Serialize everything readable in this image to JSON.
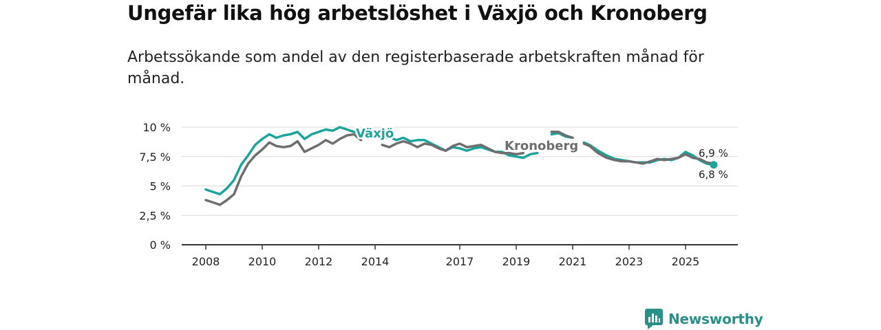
{
  "header": {
    "title": "Ungefär lika hög arbetslöshet i Växjö och Kronoberg",
    "subtitle": "Arbetssökande som andel av den registerbaserade arbetskraften månad för månad."
  },
  "brand": {
    "name": "Newsworthy",
    "icon": "newsworthy-logo-icon",
    "color": "#2a8f89"
  },
  "colors": {
    "vaxjo": "#1ba39c",
    "kronoberg": "#6e6e6e",
    "grid": "#d9d9d9",
    "axis": "#333333"
  },
  "chart_data": {
    "type": "line",
    "title": "Ungefär lika hög arbetslöshet i Växjö och Kronoberg",
    "xlabel": "",
    "ylabel": "",
    "xlim": [
      2008,
      2026.75
    ],
    "ylim": [
      0,
      10
    ],
    "y_ticks": [
      {
        "value": 0,
        "label": "0 %"
      },
      {
        "value": 2.5,
        "label": "2,5 %"
      },
      {
        "value": 5,
        "label": "5 %"
      },
      {
        "value": 7.5,
        "label": "7,5 %"
      },
      {
        "value": 10,
        "label": "10 %"
      }
    ],
    "x_ticks": [
      {
        "value": 2008,
        "label": "2008"
      },
      {
        "value": 2010,
        "label": "2010"
      },
      {
        "value": 2012,
        "label": "2012"
      },
      {
        "value": 2014,
        "label": "2014"
      },
      {
        "value": 2017,
        "label": "2017"
      },
      {
        "value": 2019,
        "label": "2019"
      },
      {
        "value": 2021,
        "label": "2021"
      },
      {
        "value": 2023,
        "label": "2023"
      },
      {
        "value": 2025,
        "label": "2025"
      }
    ],
    "grid": true,
    "series": [
      {
        "name": "Växjö",
        "label": "Växjö",
        "color": "#1ba39c",
        "end_label": "6,8 %",
        "x": [
          2008.0,
          2008.25,
          2008.5,
          2008.75,
          2009.0,
          2009.25,
          2009.5,
          2009.75,
          2010.0,
          2010.25,
          2010.5,
          2010.75,
          2011.0,
          2011.25,
          2011.5,
          2011.75,
          2012.0,
          2012.25,
          2012.5,
          2012.75,
          2013.0,
          2013.25,
          2013.5,
          null,
          2014.25,
          2014.5,
          2014.75,
          2015.0,
          2015.25,
          2015.5,
          2015.75,
          2016.0,
          2016.25,
          2016.5,
          2016.75,
          2017.0,
          2017.25,
          2017.5,
          2017.75,
          2018.0,
          2018.25,
          2018.5,
          2018.75,
          2019.0,
          2019.25,
          2019.5,
          2019.75,
          null,
          2020.25,
          2020.5,
          2020.75,
          2021.0,
          null,
          2021.4,
          2021.6,
          2021.9,
          2022.2,
          2022.5,
          2022.75,
          2023.0,
          2023.25,
          2023.5,
          2023.75,
          2024.0,
          2024.25,
          2024.5,
          2024.75,
          2025.0,
          2025.25,
          2025.5,
          2025.75,
          2026.0
        ],
        "y": [
          4.7,
          4.5,
          4.3,
          4.8,
          5.5,
          6.8,
          7.6,
          8.5,
          9.0,
          9.4,
          9.1,
          9.3,
          9.4,
          9.6,
          9.0,
          9.4,
          9.6,
          9.8,
          9.7,
          10.0,
          9.8,
          9.6,
          9.5,
          null,
          9.0,
          9.2,
          8.9,
          9.1,
          8.8,
          8.9,
          8.9,
          8.6,
          8.3,
          8.0,
          8.3,
          8.2,
          8.0,
          8.2,
          8.3,
          8.1,
          7.9,
          7.9,
          7.6,
          7.5,
          7.4,
          7.7,
          7.8,
          null,
          9.4,
          9.5,
          9.2,
          9.1,
          null,
          8.7,
          8.5,
          8.0,
          7.6,
          7.3,
          7.2,
          7.1,
          7.0,
          7.0,
          7.0,
          7.2,
          7.3,
          7.2,
          7.4,
          7.9,
          7.6,
          7.2,
          6.9,
          6.8
        ]
      },
      {
        "name": "Kronoberg",
        "label": "Kronoberg",
        "color": "#6e6e6e",
        "end_label": "6,9 %",
        "x": [
          2008.0,
          2008.25,
          2008.5,
          2008.75,
          2009.0,
          2009.25,
          2009.5,
          2009.75,
          2010.0,
          2010.25,
          2010.5,
          2010.75,
          2011.0,
          2011.25,
          2011.5,
          2011.75,
          2012.0,
          2012.25,
          2012.5,
          2012.75,
          2013.0,
          2013.25,
          2013.5,
          null,
          2014.25,
          2014.5,
          2014.75,
          2015.0,
          2015.25,
          2015.5,
          2015.75,
          2016.0,
          2016.25,
          2016.5,
          2016.75,
          2017.0,
          2017.25,
          2017.5,
          2017.75,
          2018.0,
          2018.25,
          2018.5,
          2018.75,
          2019.0,
          2019.25,
          null,
          2020.25,
          2020.5,
          2020.75,
          2021.0,
          null,
          2021.4,
          2021.6,
          2021.9,
          2022.2,
          2022.5,
          2022.75,
          2023.0,
          2023.25,
          2023.5,
          2023.75,
          2024.0,
          2024.25,
          2024.5,
          2024.75,
          2025.0,
          2025.25,
          2025.5,
          2025.75,
          2026.0
        ],
        "y": [
          3.8,
          3.6,
          3.4,
          3.8,
          4.3,
          5.8,
          6.9,
          7.6,
          8.1,
          8.7,
          8.4,
          8.3,
          8.4,
          8.8,
          7.9,
          8.2,
          8.5,
          8.9,
          8.6,
          9.0,
          9.3,
          9.4,
          8.9,
          null,
          8.5,
          8.3,
          8.6,
          8.8,
          8.6,
          8.3,
          8.6,
          8.5,
          8.2,
          8.0,
          8.4,
          8.6,
          8.3,
          8.4,
          8.5,
          8.2,
          7.9,
          7.8,
          7.8,
          7.7,
          7.8,
          null,
          9.6,
          9.6,
          9.3,
          9.1,
          null,
          8.6,
          8.4,
          7.8,
          7.4,
          7.2,
          7.1,
          7.1,
          7.0,
          6.9,
          7.1,
          7.3,
          7.2,
          7.3,
          7.4,
          7.7,
          7.4,
          7.3,
          7.0,
          6.9
        ]
      }
    ]
  }
}
